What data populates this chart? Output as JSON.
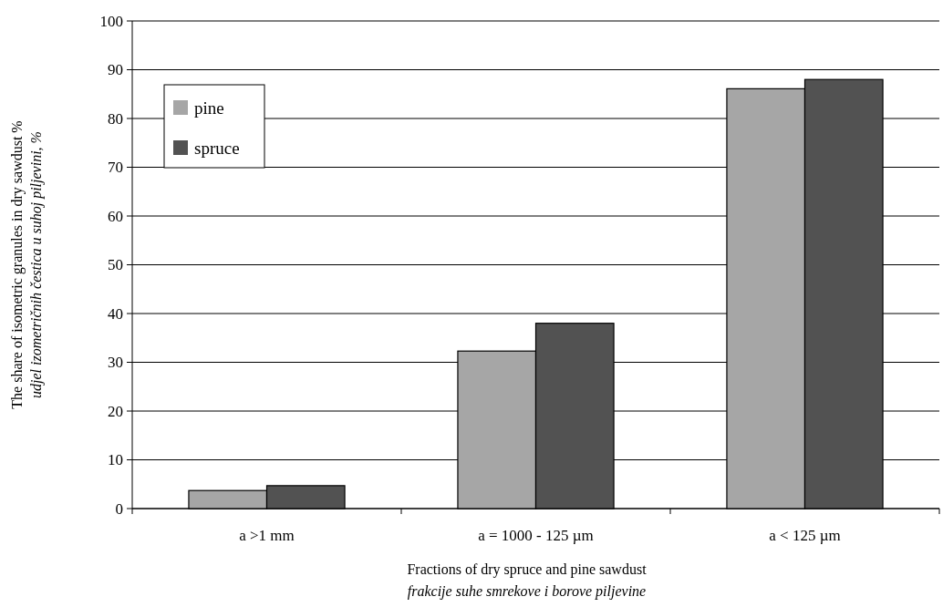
{
  "chart_data": {
    "type": "bar",
    "categories": [
      "a >1 mm",
      "a = 1000 - 125 µm",
      "a < 125 µm"
    ],
    "series": [
      {
        "name": "pine",
        "color": "#a6a6a6",
        "values": [
          3.7,
          32.3,
          86.1
        ]
      },
      {
        "name": "spruce",
        "color": "#525252",
        "values": [
          4.7,
          38.0,
          88.0
        ]
      }
    ],
    "xlabel": "Fractions of dry spruce and pine sawdust\nfrakcije suhe smrekove i borove piljevine",
    "ylabel": "The share of isometric granules in dry sawdust %\nudjel izometričnih čestica u suhoj piljevini, %",
    "ylim": [
      0,
      100
    ],
    "yticks": [
      0,
      10,
      20,
      30,
      40,
      50,
      60,
      70,
      80,
      90,
      100
    ],
    "grid": "y",
    "legend": "top left"
  }
}
